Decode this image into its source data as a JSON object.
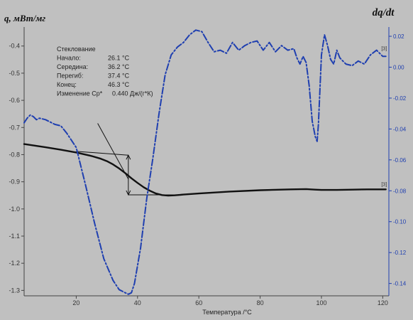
{
  "chart_data": {
    "type": "line",
    "ylabel_left": "q, мВт/мг",
    "ylabel_right": "dq/dt",
    "xlabel": "Температура /°C",
    "xlim": [
      3,
      122
    ],
    "ylim_left": [
      -1.32,
      -0.33
    ],
    "ylim_right": [
      -0.148,
      0.026
    ],
    "x_ticks": [
      20,
      40,
      60,
      80,
      100,
      120
    ],
    "x_tick_labels": [
      "20",
      "40",
      "60",
      "80",
      "100",
      "120"
    ],
    "y_left_ticks": [
      -0.4,
      -0.5,
      -0.6,
      -0.7,
      -0.8,
      -0.9,
      -1.0,
      -1.1,
      -1.2,
      -1.3
    ],
    "y_left_tick_labels": [
      "-0.4",
      "-0.5",
      "-0.6",
      "-0.7",
      "-0.8",
      "-0.9",
      "-1.0",
      "-1.1",
      "-1.2",
      "-1.3"
    ],
    "y_right_ticks": [
      0.02,
      0.0,
      -0.02,
      -0.04,
      -0.06,
      -0.08,
      -0.1,
      -0.12,
      -0.14
    ],
    "y_right_tick_labels": [
      "0.02",
      "0.00",
      "-0.02",
      "-0.04",
      "-0.06",
      "-0.08",
      "-0.10",
      "-0.12",
      "-0.14"
    ],
    "series": [
      {
        "axis": "left",
        "color": "#111111",
        "style": "solid",
        "x": [
          3,
          10,
          15,
          20,
          25,
          28,
          30,
          32,
          34,
          36,
          38,
          40,
          42,
          44,
          46,
          48,
          50,
          52,
          55,
          60,
          70,
          80,
          90,
          95,
          98,
          100,
          105,
          110,
          115,
          120,
          121
        ],
        "y": [
          -0.761,
          -0.773,
          -0.782,
          -0.792,
          -0.805,
          -0.815,
          -0.824,
          -0.836,
          -0.851,
          -0.868,
          -0.887,
          -0.904,
          -0.92,
          -0.933,
          -0.943,
          -0.949,
          -0.951,
          -0.95,
          -0.947,
          -0.943,
          -0.936,
          -0.931,
          -0.928,
          -0.927,
          -0.929,
          -0.93,
          -0.93,
          -0.929,
          -0.928,
          -0.928,
          -0.928
        ]
      },
      {
        "axis": "right",
        "color": "#1f3fb0",
        "style": "dashdot",
        "x": [
          3,
          4,
          5,
          6,
          7,
          8,
          10,
          13,
          15,
          17,
          20,
          23,
          26,
          29,
          32,
          34,
          36,
          37,
          38,
          39,
          41,
          43,
          45,
          47,
          49,
          51,
          53,
          55,
          57,
          59,
          61,
          63,
          65,
          67,
          69,
          71,
          73,
          75,
          77,
          79,
          81,
          83,
          85,
          87,
          89,
          91,
          92,
          93,
          94,
          95,
          96,
          97,
          98,
          98.6,
          99,
          100,
          101,
          102,
          103,
          104,
          105,
          106,
          107,
          108,
          110,
          112,
          114,
          116,
          118,
          120,
          121
        ],
        "y": [
          -0.036,
          -0.033,
          -0.031,
          -0.032,
          -0.034,
          -0.033,
          -0.034,
          -0.037,
          -0.038,
          -0.043,
          -0.052,
          -0.076,
          -0.101,
          -0.124,
          -0.138,
          -0.144,
          -0.146,
          -0.147,
          -0.146,
          -0.14,
          -0.117,
          -0.085,
          -0.059,
          -0.03,
          -0.005,
          0.008,
          0.013,
          0.016,
          0.021,
          0.024,
          0.023,
          0.016,
          0.01,
          0.011,
          0.009,
          0.016,
          0.011,
          0.014,
          0.016,
          0.017,
          0.011,
          0.016,
          0.01,
          0.014,
          0.011,
          0.012,
          0.006,
          0.002,
          0.007,
          0.003,
          -0.012,
          -0.035,
          -0.045,
          -0.048,
          -0.037,
          0.008,
          0.021,
          0.014,
          0.005,
          0.002,
          0.011,
          0.006,
          0.004,
          0.002,
          0.001,
          0.004,
          0.002,
          0.008,
          0.011,
          0.007,
          0.007
        ]
      }
    ],
    "annotation": {
      "title": "Стеклование",
      "rows": [
        {
          "label": "Начало:",
          "value": "26.1 °C"
        },
        {
          "label": "Середина:",
          "value": "36.2 °C"
        },
        {
          "label": "Перегиб:",
          "value": "37.4 °C"
        },
        {
          "label": "Конец:",
          "value": "46.3 °C"
        },
        {
          "label": "Изменение Cp*",
          "value": "0.440 Дж/(г*К)"
        }
      ]
    },
    "tangent_lines": {
      "upper": {
        "x": [
          20,
          37
        ],
        "y": [
          -0.788,
          -0.802
        ]
      },
      "lower": {
        "x": [
          37,
          52
        ],
        "y": [
          -0.948,
          -0.948
        ]
      },
      "vertical": {
        "x": 37,
        "y": [
          -0.802,
          -0.948
        ]
      },
      "leader": {
        "from": [
          27,
          -0.685
        ],
        "to": [
          37,
          -0.89
        ]
      }
    },
    "markers": [
      {
        "text": "[3]",
        "axis": "right",
        "x": 120,
        "y": 0.011
      },
      {
        "text": "[3]",
        "axis": "left",
        "x": 120,
        "y": -0.915
      }
    ],
    "colors": {
      "background": "#c0c0c0",
      "q_curve": "#111111",
      "dq_curve": "#1f3fb0",
      "right_axis": "#1f3fb0"
    }
  }
}
